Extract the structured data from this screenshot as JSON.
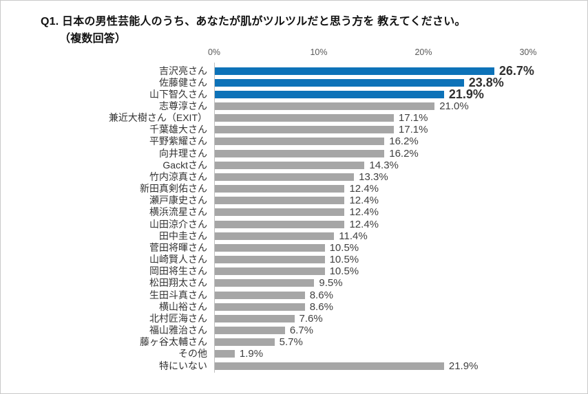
{
  "title": {
    "line1": "Q1. 日本の男性芸能人のうち、あなたが肌がツルツルだと思う方を 教えてください。",
    "line2": "（複数回答）"
  },
  "chart_data": {
    "type": "bar",
    "orientation": "horizontal",
    "title": "Q1. 日本の男性芸能人のうち、あなたが肌がツルツルだと思う方を 教えてください。（複数回答）",
    "xlabel": "",
    "ylabel": "",
    "xlim": [
      0,
      30
    ],
    "x_tick_values": [
      0,
      10,
      20,
      30
    ],
    "x_tick_labels": [
      "0%",
      "10%",
      "20%",
      "30%"
    ],
    "grid": false,
    "legend": null,
    "highlight_count": 3,
    "colors": {
      "highlight_bar": "#0d72b8",
      "default_bar": "#a6a6a6",
      "axis_line": "#bfbfbf",
      "value_text": "#404040",
      "value_text_highlight": "#303030",
      "tick_text": "#595959",
      "category_text": "#333333"
    },
    "categories": [
      "吉沢亮さん",
      "佐藤健さん",
      "山下智久さん",
      "志尊淳さん",
      "兼近大樹さん（EXIT）",
      "千葉雄大さん",
      "平野紫耀さん",
      "向井理さん",
      "Gacktさん",
      "竹内涼真さん",
      "新田真剣佑さん",
      "瀬戸康史さん",
      "横浜流星さん",
      "山田涼介さん",
      "田中圭さん",
      "菅田将暉さん",
      "山崎賢人さん",
      "岡田将生さん",
      "松田翔太さん",
      "生田斗真さん",
      "横山裕さん",
      "北村匠海さん",
      "福山雅治さん",
      "藤ヶ谷太輔さん",
      "その他",
      "特にいない"
    ],
    "values": [
      26.7,
      23.8,
      21.9,
      21.0,
      17.1,
      17.1,
      16.2,
      16.2,
      14.3,
      13.3,
      12.4,
      12.4,
      12.4,
      12.4,
      11.4,
      10.5,
      10.5,
      10.5,
      9.5,
      8.6,
      8.6,
      7.6,
      6.7,
      5.7,
      1.9,
      21.9
    ],
    "value_labels": [
      "26.7%",
      "23.8%",
      "21.9%",
      "21.0%",
      "17.1%",
      "17.1%",
      "16.2%",
      "16.2%",
      "14.3%",
      "13.3%",
      "12.4%",
      "12.4%",
      "12.4%",
      "12.4%",
      "11.4%",
      "10.5%",
      "10.5%",
      "10.5%",
      "9.5%",
      "8.6%",
      "8.6%",
      "7.6%",
      "6.7%",
      "5.7%",
      "1.9%",
      "21.9%"
    ]
  }
}
